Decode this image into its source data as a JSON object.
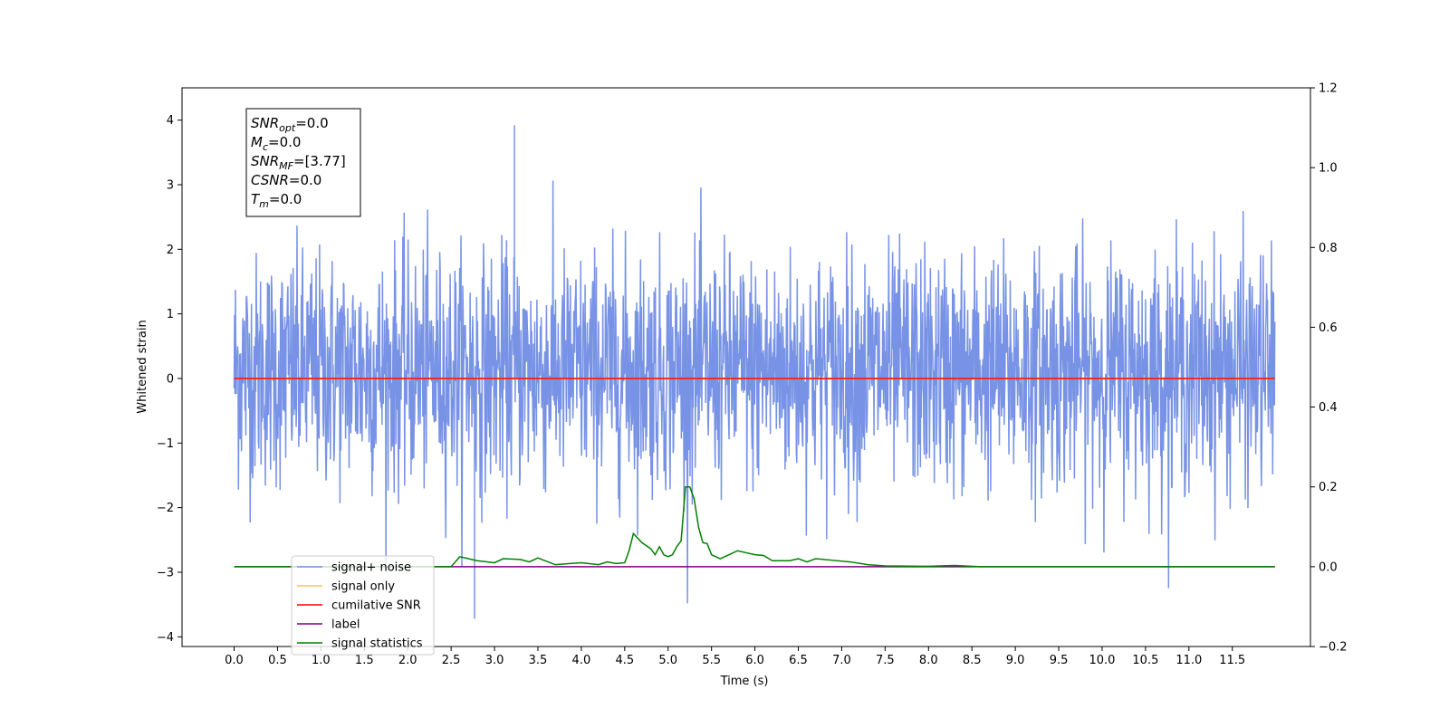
{
  "chart_data": {
    "type": "line",
    "xlabel": "Time (s)",
    "ylabel": "Whitened strain",
    "xlim": [
      -0.6,
      12.4
    ],
    "ylim": [
      -4.15,
      4.5
    ],
    "y2lim": [
      -0.2,
      1.2
    ],
    "xticks": [
      "0.0",
      "0.5",
      "1.0",
      "1.5",
      "2.0",
      "2.5",
      "3.0",
      "3.5",
      "4.0",
      "4.5",
      "5.0",
      "5.5",
      "6.0",
      "6.5",
      "7.0",
      "7.5",
      "8.0",
      "8.5",
      "9.0",
      "9.5",
      "10.0",
      "10.5",
      "11.0",
      "11.5"
    ],
    "yticks": [
      "4",
      "3",
      "2",
      "1",
      "0",
      "−1",
      "−2",
      "−3",
      "−4"
    ],
    "y2ticks": [
      "1.2",
      "1.0",
      "0.8",
      "0.6",
      "0.4",
      "0.2",
      "0.0",
      "−0.2"
    ],
    "grid": false,
    "legend_position": "lower-left",
    "series": [
      {
        "name": "signal+ noise",
        "color": "#7893e6",
        "kind": "noise",
        "x_range": [
          0,
          11.99
        ],
        "envelope": [
          -1.6,
          1.85
        ],
        "max": 3.92,
        "min": -3.72
      },
      {
        "name": "signal only",
        "color": "#ffbf60",
        "kind": "constant",
        "x_range": [
          0,
          11.99
        ],
        "value": 0.0
      },
      {
        "name": "cumilative SNR",
        "color": "#ff0000",
        "kind": "constant",
        "x_range": [
          0,
          11.99
        ],
        "value": 0.0
      },
      {
        "name": "label",
        "color": "#800080",
        "kind": "constant",
        "axis": "right",
        "x_range": [
          0,
          11.99
        ],
        "value": 0.0
      },
      {
        "name": "signal statistics",
        "color": "#008000",
        "axis": "right",
        "x": [
          0.0,
          2.3,
          2.5,
          2.6,
          2.8,
          3.0,
          3.1,
          3.3,
          3.4,
          3.5,
          3.7,
          4.0,
          4.2,
          4.3,
          4.4,
          4.5,
          4.55,
          4.6,
          4.7,
          4.8,
          4.85,
          4.9,
          4.95,
          5.0,
          5.05,
          5.1,
          5.15,
          5.2,
          5.25,
          5.3,
          5.35,
          5.4,
          5.45,
          5.5,
          5.6,
          5.7,
          5.8,
          5.9,
          6.0,
          6.1,
          6.2,
          6.4,
          6.5,
          6.6,
          6.7,
          6.9,
          7.1,
          7.3,
          7.5,
          8.0,
          8.3,
          8.6,
          11.99
        ],
        "y": [
          0.0,
          0.0,
          0.0,
          0.025,
          0.015,
          0.01,
          0.02,
          0.018,
          0.012,
          0.022,
          0.005,
          0.01,
          0.005,
          0.012,
          0.008,
          0.01,
          0.04,
          0.083,
          0.06,
          0.045,
          0.03,
          0.05,
          0.03,
          0.025,
          0.03,
          0.05,
          0.065,
          0.2,
          0.2,
          0.17,
          0.1,
          0.06,
          0.058,
          0.03,
          0.02,
          0.03,
          0.04,
          0.035,
          0.03,
          0.028,
          0.015,
          0.015,
          0.02,
          0.012,
          0.02,
          0.016,
          0.012,
          0.005,
          0.002,
          0.001,
          0.003,
          0.0,
          0.0
        ]
      }
    ],
    "annotation_lines": [
      {
        "label": "SNR",
        "sub": "opt",
        "value": "=0.0"
      },
      {
        "label": "M",
        "sub": "c",
        "value": "=0.0"
      },
      {
        "label": "SNR",
        "sub": "MF",
        "value": "=[3.77]"
      },
      {
        "label": "CSNR",
        "sub": "",
        "value": "=0.0"
      },
      {
        "label": "T",
        "sub": "m",
        "value": "=0.0"
      }
    ]
  }
}
